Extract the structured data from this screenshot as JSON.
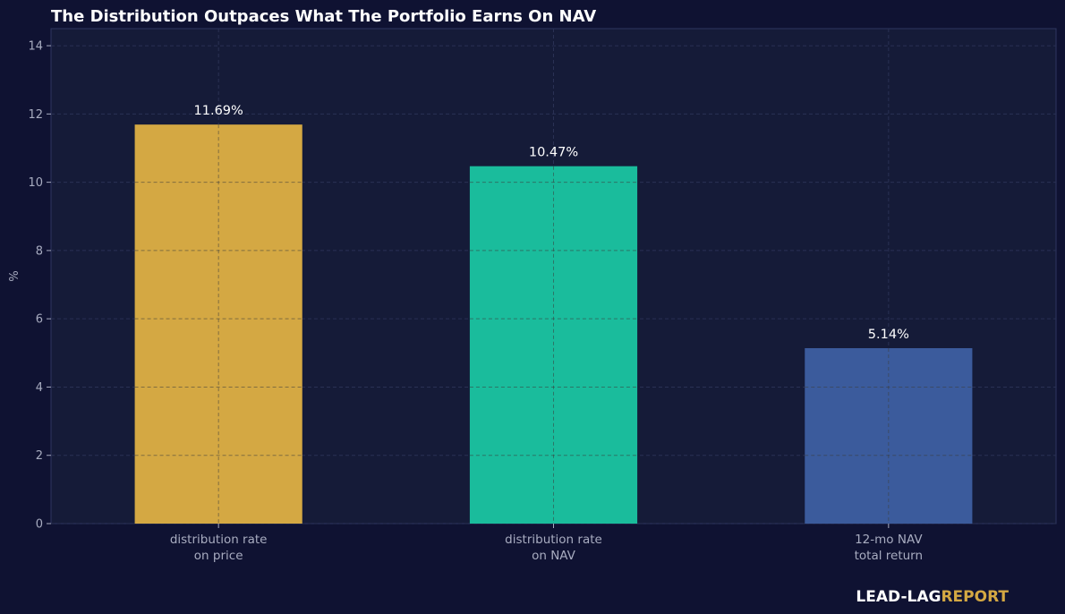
{
  "chart_data": {
    "type": "bar",
    "title": "The Distribution Outpaces What The Portfolio Earns On NAV",
    "xlabel": "",
    "ylabel": "%",
    "ylim": [
      0,
      14.5
    ],
    "yticks": [
      0,
      2,
      4,
      6,
      8,
      10,
      12,
      14
    ],
    "categories": [
      [
        "distribution rate",
        "on price"
      ],
      [
        "distribution rate",
        "on NAV"
      ],
      [
        "12-mo NAV",
        "total return"
      ]
    ],
    "values": [
      11.69,
      10.47,
      5.14
    ],
    "data_labels": [
      "11.69%",
      "10.47%",
      "5.14%"
    ],
    "bar_colors": [
      "#d4a843",
      "#1abc9c",
      "#3b5b9c"
    ],
    "grid": true,
    "legend": "none"
  },
  "brand": {
    "part1": "LEAD-LAG",
    "part2": "REPORT",
    "part1_color": "#ffffff",
    "part2_color": "#d4a843"
  },
  "theme": {
    "background": "#0f1232",
    "plot_background": "#151b38",
    "title_color": "#ffffff",
    "tick_color": "#a8acc0",
    "grid_color": "#2a3154",
    "bar_grid_color": "#555555",
    "data_label_color": "#ffffff"
  }
}
